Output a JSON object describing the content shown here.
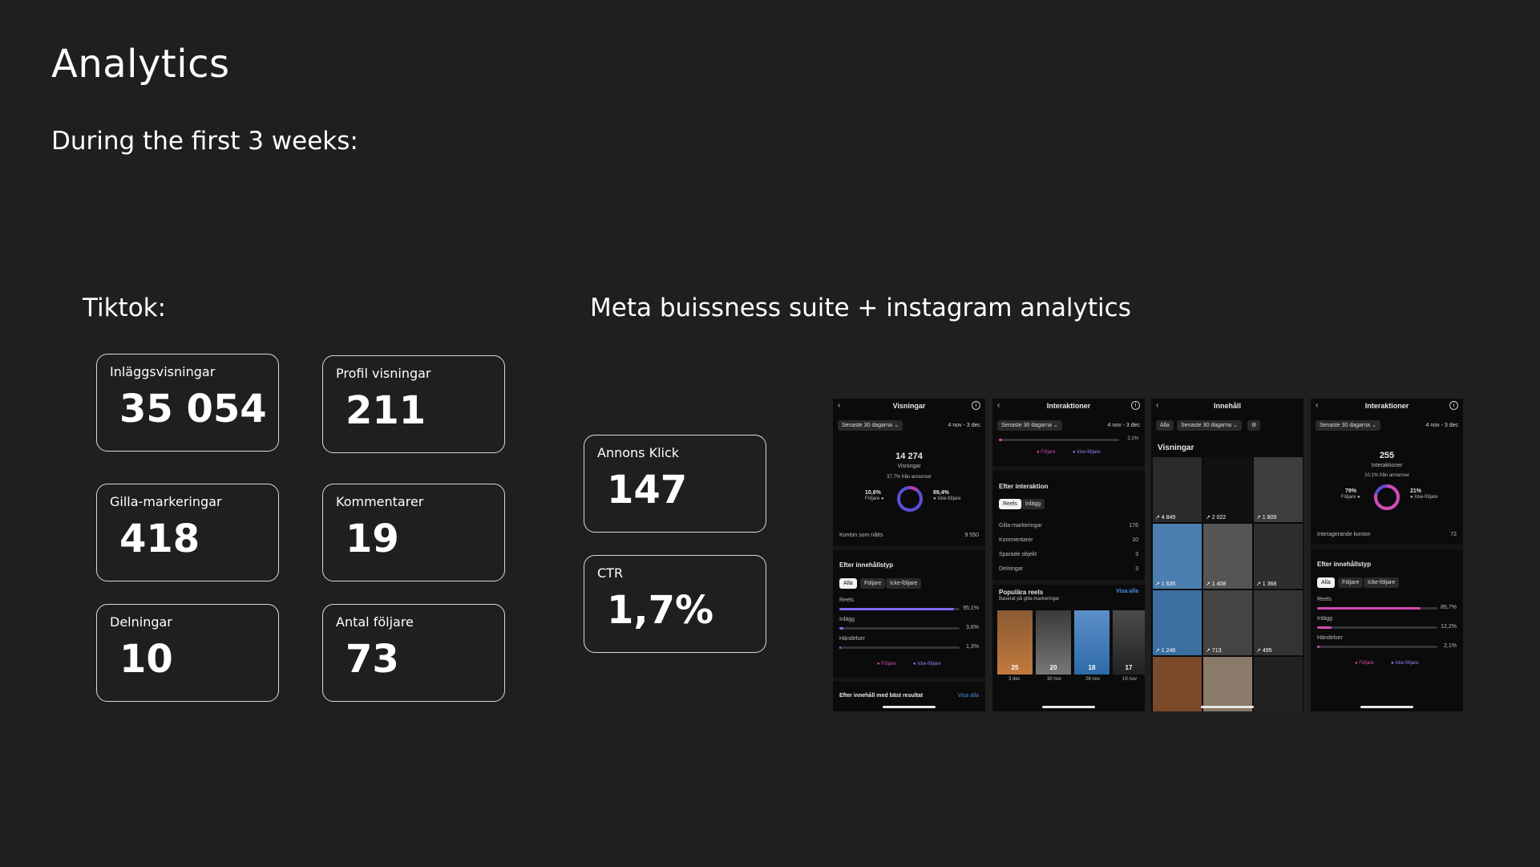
{
  "title": "Analytics",
  "subtitle": "During the first 3 weeks:",
  "tiktok": {
    "heading": "Tiktok:",
    "cards": [
      {
        "label": "Inläggsvisningar",
        "value": "35 054"
      },
      {
        "label": "Profil visningar",
        "value": "211"
      },
      {
        "label": "Gilla-markeringar",
        "value": "418"
      },
      {
        "label": "Kommentarer",
        "value": "19"
      },
      {
        "label": "Delningar",
        "value": "10"
      },
      {
        "label": "Antal följare",
        "value": "73"
      }
    ]
  },
  "meta": {
    "heading": "Meta buissness suite + instagram analytics",
    "cards": [
      {
        "label": "Annons Klick",
        "value": "147"
      },
      {
        "label": "CTR",
        "value": "1,7%"
      }
    ]
  },
  "screens": {
    "s1": {
      "title": "Visningar",
      "period": "Senaste 30 dagarna ⌄",
      "range": "4 nov - 3 dec",
      "total": "14 274",
      "total_label": "Visningar",
      "change": "37,7% från annonser",
      "left_pct": "10,6%",
      "left_lbl": "Följare ●",
      "right_pct": "89,4%",
      "right_lbl": "● Icke-följare",
      "reached": "Konton som nåtts",
      "reached_val": "9 550",
      "section": "Efter innehållstyp",
      "tabs": [
        "Alla",
        "Följare",
        "Icke-följare"
      ],
      "rows": [
        {
          "name": "Reels",
          "pct": "95,1%",
          "frac": 0.951
        },
        {
          "name": "Inlägg",
          "pct": "3,6%",
          "frac": 0.036
        },
        {
          "name": "Händelser",
          "pct": "1,3%",
          "frac": 0.013
        }
      ],
      "legend_a": "● Följare",
      "legend_b": "● Icke-följare",
      "footer": "Efter innehåll med bäst resultat",
      "footer_link": "Visa alla"
    },
    "s2": {
      "title": "Interaktioner",
      "period": "Senaste 30 dagarna ⌄",
      "range": "4 nov - 3 dec",
      "top_pct": "2,1%",
      "legend_a": "● Följare",
      "legend_b": "● Icke-följare",
      "section": "Efter interaktion",
      "tabs": [
        "Reels",
        "Inlägg"
      ],
      "rows": [
        {
          "name": "Gilla-markeringar",
          "val": "176"
        },
        {
          "name": "Kommentarer",
          "val": "10"
        },
        {
          "name": "Sparade objekt",
          "val": "3"
        },
        {
          "name": "Delningar",
          "val": "3"
        }
      ],
      "popular": "Populära reels",
      "popular_link": "Visa alla",
      "popular_sub": "Baserat på gilla-markeringar",
      "thumbs": [
        {
          "n": "25",
          "d": "3 dec"
        },
        {
          "n": "20",
          "d": "30 nov"
        },
        {
          "n": "18",
          "d": "26 nov"
        },
        {
          "n": "17",
          "d": "19 nov"
        }
      ]
    },
    "s3": {
      "title": "Innehåll",
      "tabs": [
        "Alla",
        "Senaste 30 dagarna ⌄"
      ],
      "section": "Visningar",
      "counts": [
        "4 849",
        "2 022",
        "1 809",
        "1 635",
        "1 408",
        "1 368",
        "1 246",
        "713",
        "495"
      ]
    },
    "s4": {
      "title": "Interaktioner",
      "period": "Senaste 30 dagarna ⌄",
      "range": "4 nov - 3 dec",
      "total": "255",
      "total_label": "Interaktioner",
      "change": "10,1% från annonser",
      "left_pct": "79%",
      "left_lbl": "Följare ●",
      "right_pct": "21%",
      "right_lbl": "● Icke-följare",
      "reached": "Interagerande konton",
      "reached_val": "72",
      "section": "Efter innehållstyp",
      "tabs": [
        "Alla",
        "Följare",
        "Icke-följare"
      ],
      "rows": [
        {
          "name": "Reels",
          "pct": "85,7%",
          "frac": 0.857
        },
        {
          "name": "Inlägg",
          "pct": "12,2%",
          "frac": 0.122
        },
        {
          "name": "Händelser",
          "pct": "2,1%",
          "frac": 0.021
        }
      ],
      "legend_a": "● Följare",
      "legend_b": "● Icke-följare"
    }
  },
  "colors": {
    "accent_purple": "#7b6cf0",
    "accent_pink": "#d24bb3",
    "link_blue": "#4a90e2"
  }
}
